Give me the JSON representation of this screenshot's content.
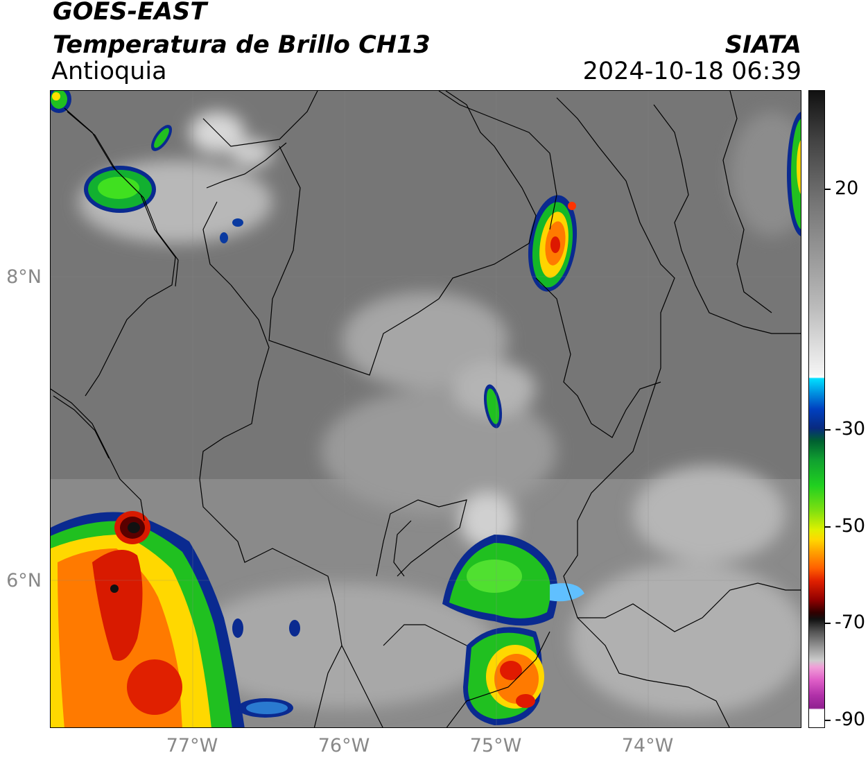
{
  "header": {
    "satellite": "GOES-EAST",
    "product": "Temperatura de Brillo CH13",
    "region": "Antioquia",
    "agency": "SIATA",
    "datetime": "2024-10-18 06:39"
  },
  "map": {
    "lat_labels": [
      "8°N",
      "6°N"
    ],
    "lon_labels": [
      "77°W",
      "76°W",
      "75°W",
      "74°W"
    ],
    "colorbar": {
      "ticks": [
        "20",
        "-30",
        "-50",
        "-70",
        "-90"
      ],
      "range": [
        -90,
        30
      ],
      "colors": {
        "gray_warm": "#1a1a1a",
        "gray_mid": "#888888",
        "white": "#ffffff",
        "cyan": "#00d8ff",
        "blue": "#0030a0",
        "green": "#00cc22",
        "yellow": "#ffee00",
        "orange": "#ff8800",
        "red": "#ee1100",
        "dark_red": "#550000",
        "pink": "#ee66cc",
        "purple": "#882299"
      }
    }
  }
}
